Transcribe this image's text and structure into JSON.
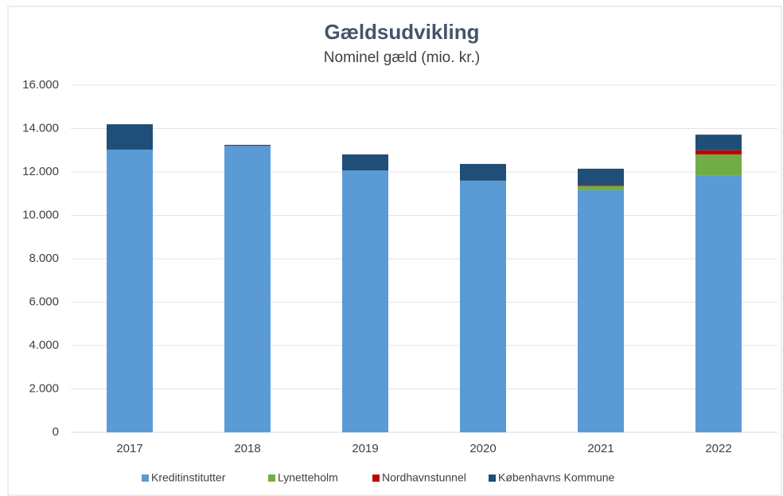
{
  "chart_data": {
    "type": "stacked_bar",
    "title": "Gældsudvikling",
    "subtitle": "Nominel gæld (mio. kr.)",
    "categories": [
      "2017",
      "2018",
      "2019",
      "2020",
      "2021",
      "2022"
    ],
    "series": [
      {
        "name": "Kreditinstitutter",
        "color": "#5b9bd5",
        "values": [
          13030,
          13200,
          12070,
          11600,
          11160,
          11850
        ]
      },
      {
        "name": "Lynetteholm",
        "color": "#70ad47",
        "values": [
          0,
          0,
          0,
          0,
          200,
          960
        ]
      },
      {
        "name": "Nordhavnstunnel",
        "color": "#c00000",
        "values": [
          0,
          0,
          0,
          0,
          50,
          190
        ]
      },
      {
        "name": "Københavns Kommune",
        "color": "#1f4e79",
        "values": [
          1170,
          50,
          740,
          770,
          740,
          720
        ]
      }
    ],
    "ylim": [
      0,
      16000
    ],
    "yticks": [
      0,
      {
        "value": 2000,
        "label": "2.000"
      },
      {
        "value": 4000,
        "label": "4.000"
      },
      {
        "value": 6000,
        "label": "6.000"
      },
      {
        "value": 8000,
        "label": "8.000"
      },
      {
        "value": 10000,
        "label": "10.000"
      },
      {
        "value": 12000,
        "label": "12.000"
      },
      {
        "value": 14000,
        "label": "14.000"
      },
      {
        "value": 16000,
        "label": "16.000"
      }
    ],
    "grid": true,
    "legend": "bottom"
  }
}
